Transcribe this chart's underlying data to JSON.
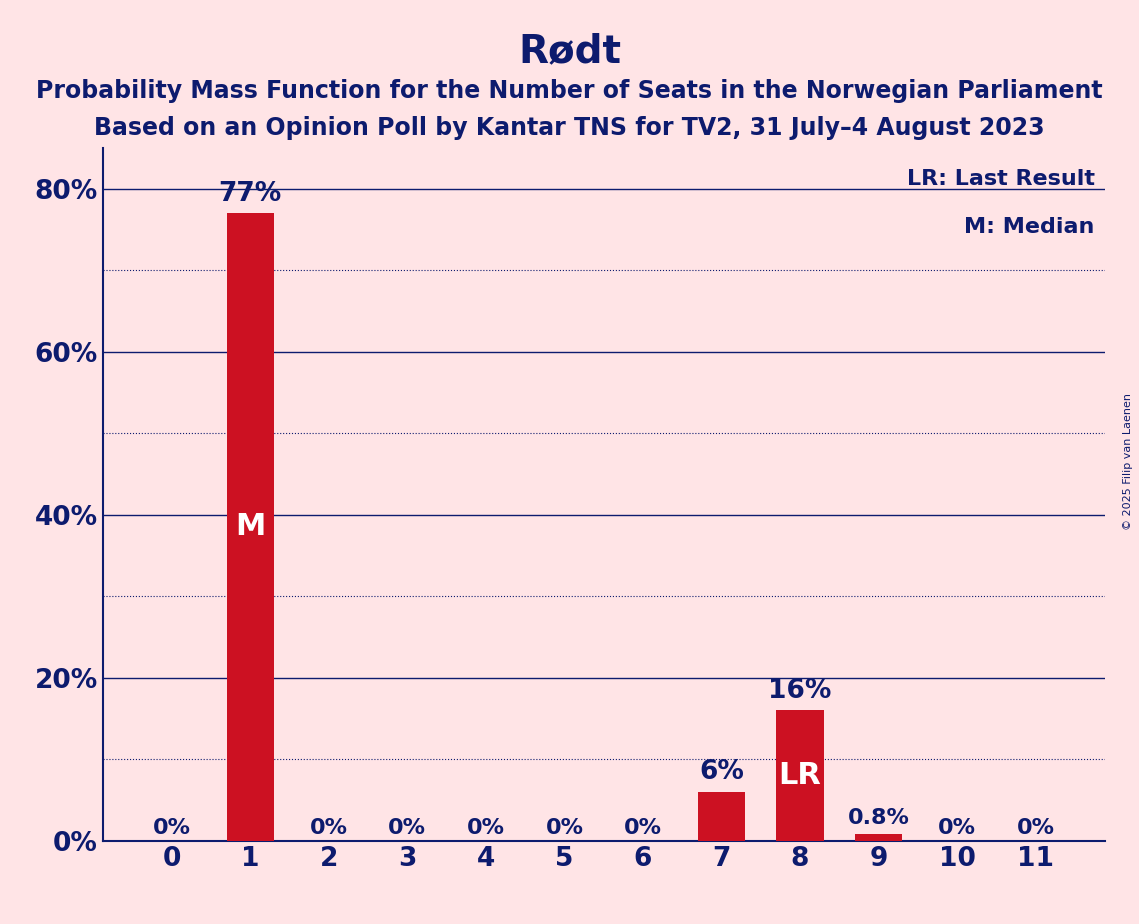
{
  "title": "Rødt",
  "subtitle1": "Probability Mass Function for the Number of Seats in the Norwegian Parliament",
  "subtitle2": "Based on an Opinion Poll by Kantar TNS for TV2, 31 July–4 August 2023",
  "copyright": "© 2025 Filip van Laenen",
  "categories": [
    0,
    1,
    2,
    3,
    4,
    5,
    6,
    7,
    8,
    9,
    10,
    11
  ],
  "values": [
    0.0,
    77.0,
    0.0,
    0.0,
    0.0,
    0.0,
    0.0,
    6.0,
    16.0,
    0.8,
    0.0,
    0.0
  ],
  "bar_color": "#CC1122",
  "background_color": "#FFE4E6",
  "text_color": "#0D1B6E",
  "bar_label_color": "#FFFFFF",
  "median_bar": 1,
  "lr_bar": 8,
  "ylim": [
    0,
    85
  ],
  "yticks": [
    0,
    20,
    40,
    60,
    80
  ],
  "dotted_lines": [
    10,
    30,
    50,
    70
  ],
  "solid_lines": [
    20,
    40,
    60,
    80
  ],
  "legend_lr": "LR: Last Result",
  "legend_m": "M: Median",
  "title_fontsize": 28,
  "subtitle_fontsize": 17,
  "bar_label_fontsize": 16,
  "tick_fontsize": 19,
  "legend_fontsize": 16,
  "inside_label_fontsize": 22
}
